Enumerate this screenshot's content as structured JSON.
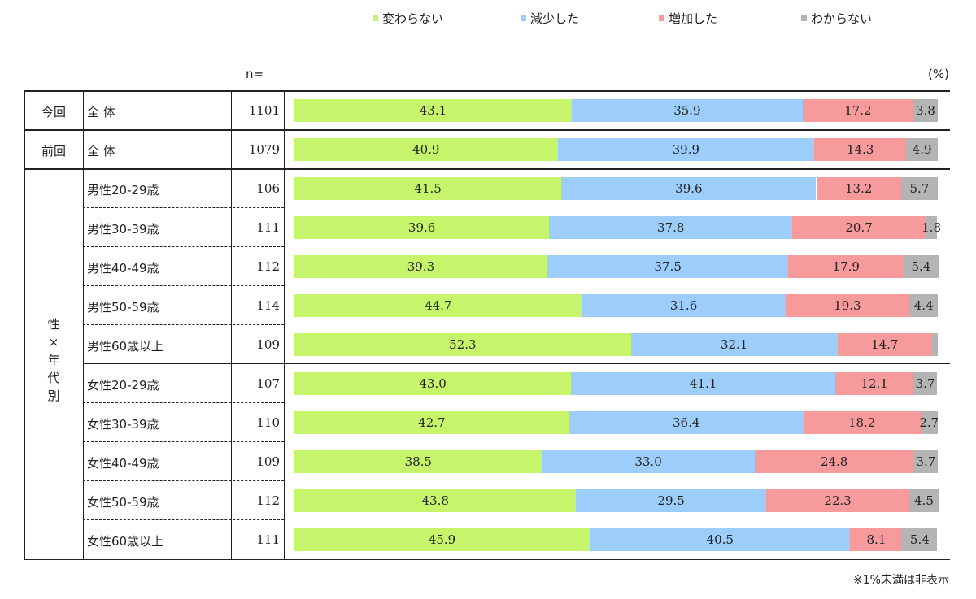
{
  "legend": [
    {
      "label": "変わらない",
      "color": "#c6f56b"
    },
    {
      "label": "減少した",
      "color": "#9ccdfb"
    },
    {
      "label": "増加した",
      "color": "#f79a9c"
    },
    {
      "label": "わからない",
      "color": "#b4b4b4"
    }
  ],
  "n_header": "n=",
  "unit": "(%)",
  "footnote": "※1%未満は非表示",
  "chart_data": {
    "type": "bar",
    "orientation": "horizontal-stacked-100",
    "series": [
      {
        "name": "変わらない",
        "color": "#c6f56b",
        "values": [
          43.1,
          40.9,
          41.5,
          39.6,
          39.3,
          44.7,
          52.3,
          43.0,
          42.7,
          38.5,
          43.8,
          45.9
        ]
      },
      {
        "name": "減少した",
        "color": "#9ccdfb",
        "values": [
          35.9,
          39.9,
          39.6,
          37.8,
          37.5,
          31.6,
          32.1,
          41.1,
          36.4,
          33.0,
          29.5,
          40.5
        ]
      },
      {
        "name": "増加した",
        "color": "#f79a9c",
        "values": [
          17.2,
          14.3,
          13.2,
          20.7,
          17.9,
          19.3,
          14.7,
          12.1,
          18.2,
          24.8,
          22.3,
          8.1
        ]
      },
      {
        "name": "わからない",
        "color": "#b4b4b4",
        "values": [
          3.8,
          4.9,
          5.7,
          1.8,
          5.4,
          4.4,
          0.9,
          3.7,
          2.7,
          3.7,
          4.5,
          5.4
        ]
      }
    ],
    "rows": [
      {
        "group": "今回",
        "label": "全 体",
        "n": "1101"
      },
      {
        "group": "前回",
        "label": "全 体",
        "n": "1079"
      },
      {
        "group": "性×年代別",
        "label": "男性20-29歳",
        "n": "106"
      },
      {
        "group": "性×年代別",
        "label": "男性30-39歳",
        "n": "111"
      },
      {
        "group": "性×年代別",
        "label": "男性40-49歳",
        "n": "112"
      },
      {
        "group": "性×年代別",
        "label": "男性50-59歳",
        "n": "114"
      },
      {
        "group": "性×年代別",
        "label": "男性60歳以上",
        "n": "109"
      },
      {
        "group": "性×年代別",
        "label": "女性20-29歳",
        "n": "107"
      },
      {
        "group": "性×年代別",
        "label": "女性30-39歳",
        "n": "110"
      },
      {
        "group": "性×年代別",
        "label": "女性40-49歳",
        "n": "109"
      },
      {
        "group": "性×年代別",
        "label": "女性50-59歳",
        "n": "112"
      },
      {
        "group": "性×年代別",
        "label": "女性60歳以上",
        "n": "111"
      }
    ],
    "group_labels": {
      "current": "今回",
      "previous": "前回",
      "demographic": [
        "性",
        "×",
        "年",
        "代",
        "別"
      ]
    },
    "hidden_below": 1,
    "xlim": [
      0,
      100
    ]
  }
}
